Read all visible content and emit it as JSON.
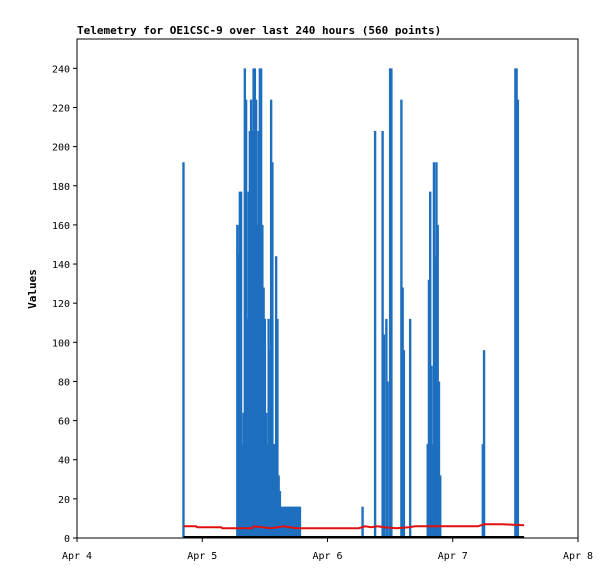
{
  "chart_data": {
    "type": "line",
    "title": "Telemetry for OE1CSC-9 over last 240 hours (560 points)",
    "xlabel": "",
    "ylabel": "Values",
    "x_ticks": [
      "Apr 4",
      "Apr 5",
      "Apr 6",
      "Apr 7",
      "Apr 8"
    ],
    "x_tick_days": [
      0,
      1,
      2,
      3,
      4
    ],
    "xlim_days": [
      0,
      4
    ],
    "ylim": [
      0,
      255
    ],
    "y_ticks": [
      0,
      20,
      40,
      60,
      80,
      100,
      120,
      140,
      160,
      180,
      200,
      220,
      240
    ],
    "grid": false,
    "legend": "none",
    "series": [
      {
        "color": "#1f6fbf",
        "style": "spikes",
        "x_days": [
          0.85,
          1.28,
          1.29,
          1.3,
          1.31,
          1.32,
          1.33,
          1.34,
          1.35,
          1.36,
          1.37,
          1.38,
          1.39,
          1.4,
          1.41,
          1.42,
          1.43,
          1.44,
          1.45,
          1.46,
          1.47,
          1.48,
          1.49,
          1.5,
          1.51,
          1.52,
          1.53,
          1.54,
          1.55,
          1.56,
          1.57,
          1.58,
          1.59,
          1.6,
          1.61,
          1.62,
          1.63,
          1.64,
          1.65,
          1.66,
          1.67,
          1.68,
          1.69,
          1.7,
          1.71,
          1.72,
          1.73,
          1.74,
          1.75,
          1.76,
          1.77,
          1.78,
          2.28,
          2.38,
          2.44,
          2.45,
          2.47,
          2.48,
          2.5,
          2.51,
          2.59,
          2.6,
          2.61,
          2.66,
          2.8,
          2.81,
          2.82,
          2.83,
          2.84,
          2.85,
          2.86,
          2.87,
          2.88,
          2.89,
          2.9,
          3.24,
          3.25,
          3.5,
          3.51,
          3.52
        ],
        "y": [
          192,
          160,
          145,
          177,
          177,
          48,
          64,
          240,
          224,
          112,
          177,
          208,
          224,
          208,
          240,
          240,
          224,
          160,
          208,
          240,
          240,
          160,
          128,
          112,
          64,
          48,
          112,
          96,
          224,
          192,
          48,
          48,
          144,
          112,
          32,
          24,
          16,
          16,
          16,
          16,
          16,
          16,
          16,
          16,
          16,
          16,
          16,
          16,
          16,
          16,
          16,
          16,
          16,
          208,
          208,
          104,
          112,
          80,
          240,
          240,
          224,
          128,
          96,
          112,
          48,
          132,
          177,
          88,
          48,
          192,
          144,
          192,
          160,
          80,
          32,
          48,
          96,
          240,
          240,
          224
        ]
      },
      {
        "color": "#e01010",
        "style": "line",
        "x_days": [
          0.85,
          0.95,
          0.96,
          1.15,
          1.16,
          1.4,
          1.41,
          1.55,
          1.65,
          1.7,
          1.75,
          2.0,
          2.25,
          2.3,
          2.35,
          2.4,
          2.45,
          2.55,
          2.65,
          2.7,
          2.8,
          3.0,
          3.2,
          3.25,
          3.4,
          3.57
        ],
        "y": [
          6,
          6,
          5.5,
          5.5,
          5,
          5,
          6,
          5,
          6,
          5.5,
          5,
          5,
          5,
          6,
          5.5,
          6,
          5.5,
          5,
          5.5,
          6,
          6,
          6,
          6,
          7,
          7,
          6.5
        ]
      },
      {
        "color": "#000000",
        "style": "line",
        "x_days": [
          0.85,
          3.57
        ],
        "y": [
          0.5,
          0.5
        ]
      }
    ]
  }
}
